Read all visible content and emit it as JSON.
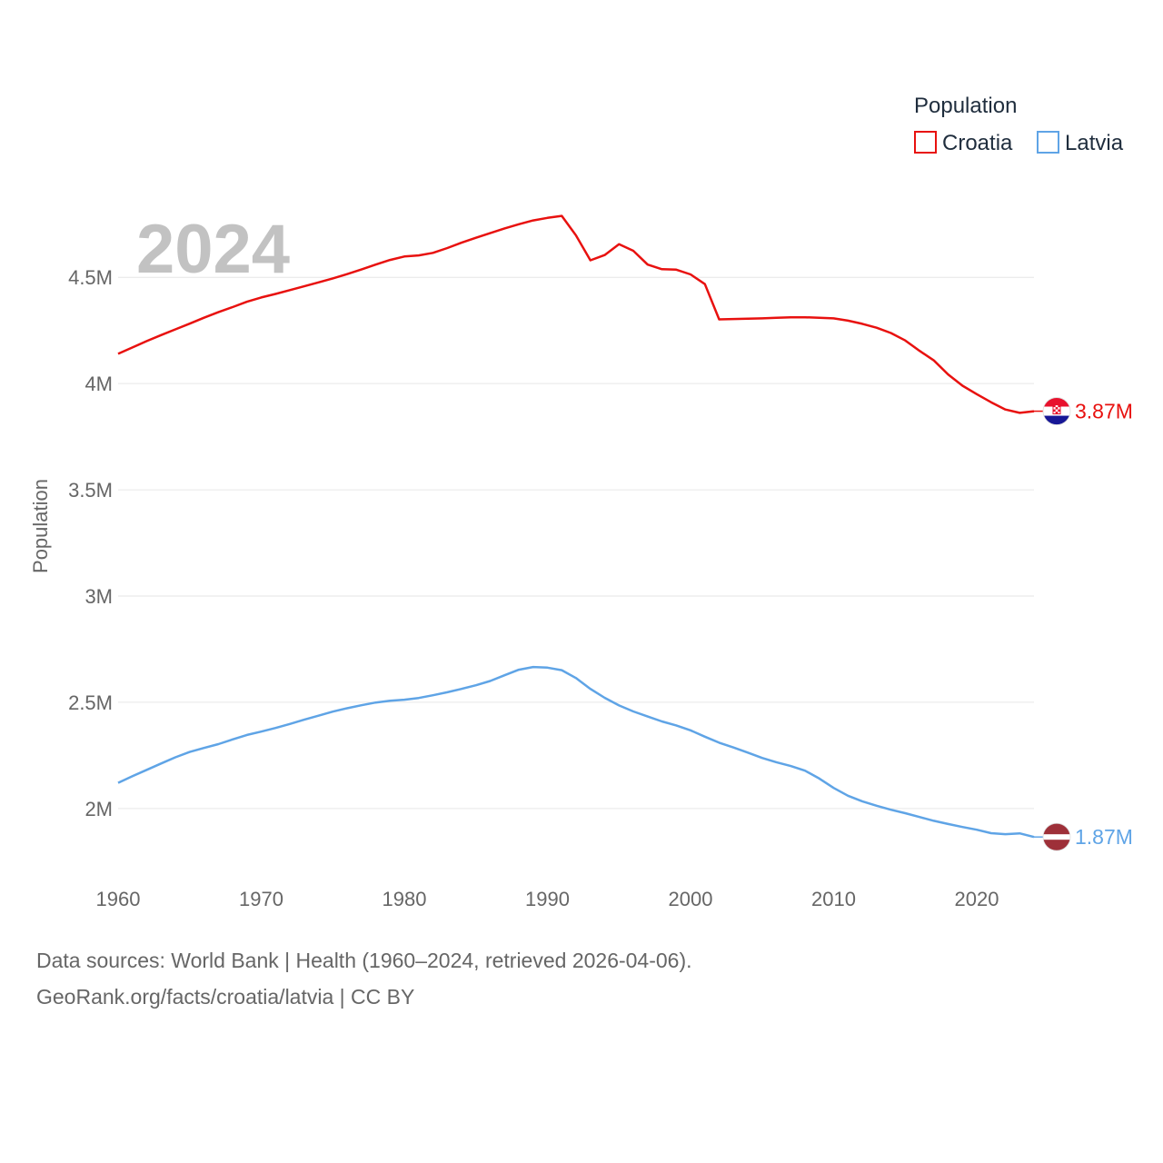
{
  "chart_data": {
    "type": "line",
    "year_label": "2024",
    "ylabel": "Population",
    "xlim": [
      1960,
      2024
    ],
    "ylim": [
      1700000,
      4950000
    ],
    "x_ticks": [
      1960,
      1970,
      1980,
      1990,
      2000,
      2010,
      2020
    ],
    "y_ticks": [
      {
        "value": 2000000,
        "label": "2M"
      },
      {
        "value": 2500000,
        "label": "2.5M"
      },
      {
        "value": 3000000,
        "label": "3M"
      },
      {
        "value": 3500000,
        "label": "3.5M"
      },
      {
        "value": 4000000,
        "label": "4M"
      },
      {
        "value": 4500000,
        "label": "4.5M"
      }
    ],
    "legend": {
      "title": "Population",
      "position": "top-right"
    },
    "x": [
      1960,
      1961,
      1962,
      1963,
      1964,
      1965,
      1966,
      1967,
      1968,
      1969,
      1970,
      1971,
      1972,
      1973,
      1974,
      1975,
      1976,
      1977,
      1978,
      1979,
      1980,
      1981,
      1982,
      1983,
      1984,
      1985,
      1986,
      1987,
      1988,
      1989,
      1990,
      1991,
      1992,
      1993,
      1994,
      1995,
      1996,
      1997,
      1998,
      1999,
      2000,
      2001,
      2002,
      2003,
      2004,
      2005,
      2006,
      2007,
      2008,
      2009,
      2010,
      2011,
      2012,
      2013,
      2014,
      2015,
      2016,
      2017,
      2018,
      2019,
      2020,
      2021,
      2022,
      2023,
      2024
    ],
    "series": [
      {
        "name": "Croatia",
        "color": "#e8110f",
        "end_label": "3.87M",
        "flag": "croatia-flag-icon",
        "values": [
          4140000,
          4170000,
          4200000,
          4228000,
          4255000,
          4282000,
          4310000,
          4336000,
          4360000,
          4385000,
          4405000,
          4422000,
          4440000,
          4458000,
          4476000,
          4495000,
          4515000,
          4537000,
          4560000,
          4582000,
          4598000,
          4603000,
          4615000,
          4638000,
          4663000,
          4686000,
          4708000,
          4730000,
          4750000,
          4768000,
          4780000,
          4789000,
          4697000,
          4580000,
          4605000,
          4656000,
          4625000,
          4560000,
          4538000,
          4536000,
          4514000,
          4468000,
          4302000,
          4304000,
          4305000,
          4307000,
          4310000,
          4312000,
          4312000,
          4310000,
          4307000,
          4296000,
          4281000,
          4263000,
          4238000,
          4203000,
          4154000,
          4109000,
          4043000,
          3990000,
          3950000,
          3912000,
          3878000,
          3862000,
          3870000
        ]
      },
      {
        "name": "Latvia",
        "color": "#5fa4e6",
        "end_label": "1.87M",
        "flag": "latvia-flag-icon",
        "values": [
          2121000,
          2152000,
          2182000,
          2212000,
          2241000,
          2266000,
          2285000,
          2303000,
          2325000,
          2346000,
          2362000,
          2379000,
          2398000,
          2418000,
          2437000,
          2456000,
          2472000,
          2486000,
          2499000,
          2507000,
          2512000,
          2520000,
          2533000,
          2547000,
          2563000,
          2580000,
          2600000,
          2627000,
          2653000,
          2666000,
          2663000,
          2651000,
          2614000,
          2563000,
          2521000,
          2485000,
          2457000,
          2433000,
          2410000,
          2391000,
          2368000,
          2338000,
          2310000,
          2287000,
          2263000,
          2238000,
          2218000,
          2200000,
          2178000,
          2141000,
          2097000,
          2060000,
          2034000,
          2013000,
          1994000,
          1978000,
          1960000,
          1942000,
          1927000,
          1913000,
          1900000,
          1884000,
          1879000,
          1883000,
          1866000
        ]
      }
    ]
  },
  "footer": {
    "line1": "Data sources: World Bank | Health (1960–2024, retrieved 2026-04-06).",
    "line2": "GeoRank.org/facts/croatia/latvia | CC BY"
  }
}
